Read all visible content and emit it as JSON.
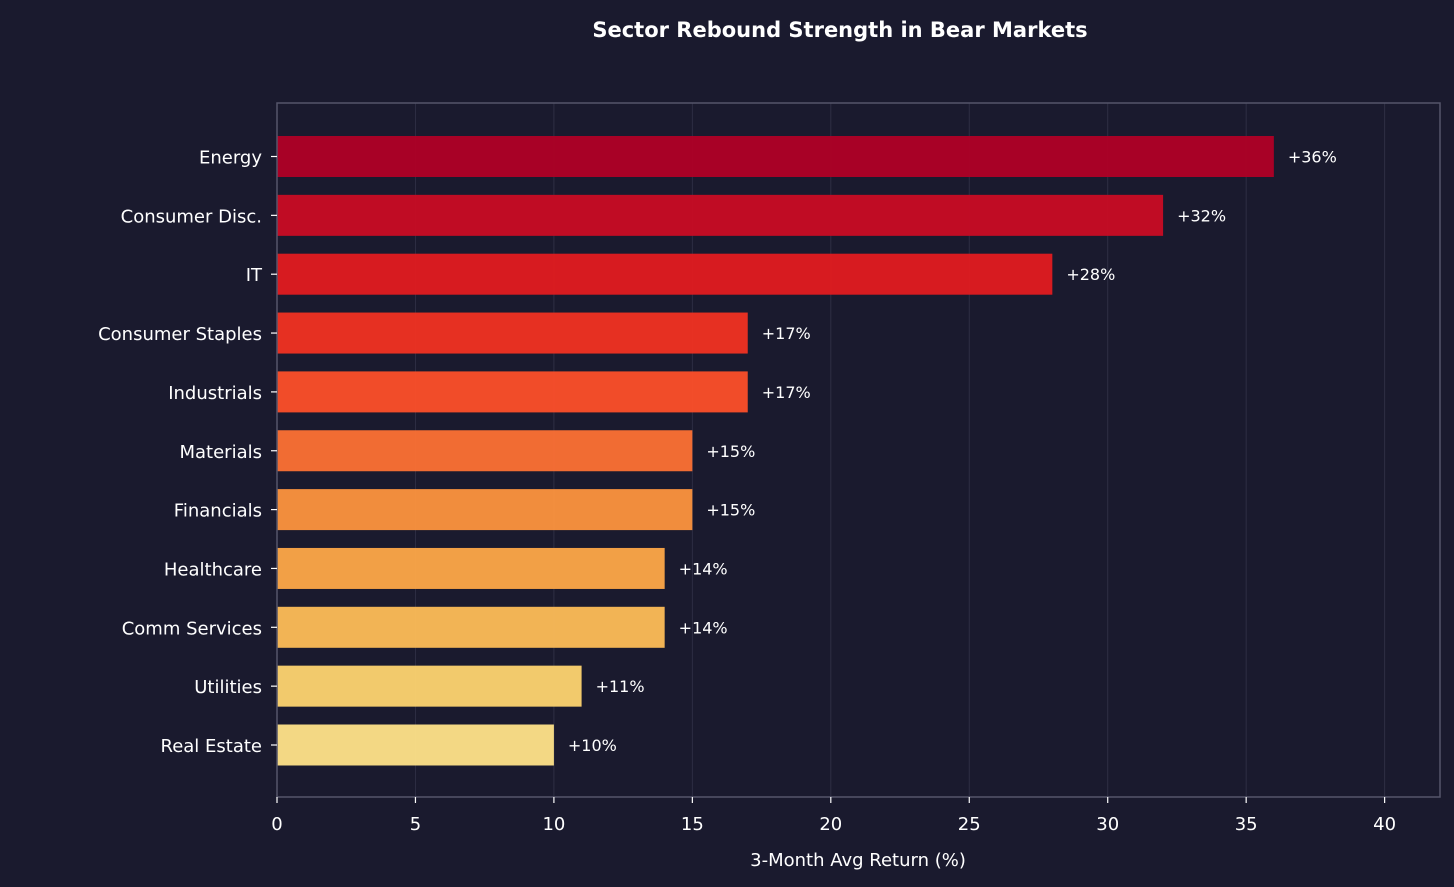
{
  "chart_data": {
    "type": "bar",
    "orientation": "horizontal",
    "title": "Sector Rebound Strength in Bear Markets",
    "xlabel": "3-Month Avg Return (%)",
    "ylabel": "",
    "xlim": [
      0,
      42
    ],
    "xticks": [
      0,
      5,
      10,
      15,
      20,
      25,
      30,
      35,
      40
    ],
    "grid": true,
    "categories": [
      "Energy",
      "Consumer Disc.",
      "IT",
      "Consumer Staples",
      "Industrials",
      "Materials",
      "Financials",
      "Healthcare",
      "Comm Services",
      "Utilities",
      "Real Estate"
    ],
    "values": [
      36,
      32,
      28,
      17,
      17,
      15,
      15,
      14,
      14,
      11,
      10
    ],
    "value_labels": [
      "+36%",
      "+32%",
      "+28%",
      "+17%",
      "+17%",
      "+15%",
      "+15%",
      "+14%",
      "+14%",
      "+11%",
      "+10%"
    ],
    "colors": [
      "#b00026",
      "#c90c24",
      "#e11b20",
      "#f13222",
      "#fd4f29",
      "#fd7134",
      "#fd933e",
      "#fea848",
      "#febd57",
      "#fed470",
      "#ffe389"
    ],
    "background": "#1a1a2e",
    "frame_color": "#55556a",
    "grid_color": "#2e2e44"
  }
}
